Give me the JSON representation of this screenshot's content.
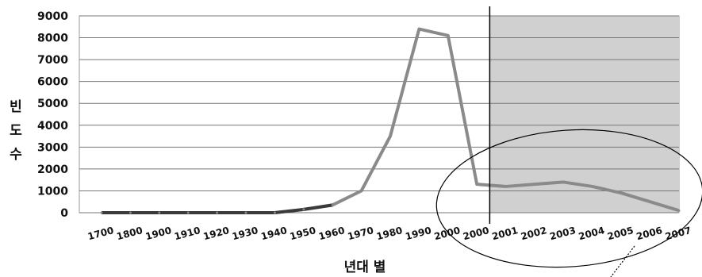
{
  "chart_data": {
    "type": "line",
    "title": "",
    "xlabel": "년대 별",
    "ylabel": "빈도수",
    "ylabel_chars": [
      "빈",
      "도",
      "수"
    ],
    "categories": [
      "1700",
      "1800",
      "1900",
      "1910",
      "1920",
      "1930",
      "1940",
      "1950",
      "1960",
      "1970",
      "1980",
      "1990",
      "2000",
      "2000",
      "2001",
      "2002",
      "2003",
      "2004",
      "2005",
      "2006",
      "2007"
    ],
    "series": [
      {
        "values": [
          0,
          0,
          0,
          0,
          0,
          0,
          0,
          150,
          350,
          1000,
          3500,
          8400,
          8100,
          1300,
          1200,
          1300,
          1400,
          1200,
          900,
          500,
          100
        ],
        "color": "#8a8a8a"
      }
    ],
    "ylim": [
      0,
      9000
    ],
    "yticks": [
      "0",
      "1000",
      "2000",
      "3000",
      "4000",
      "5000",
      "6000",
      "7000",
      "8000",
      "9000"
    ],
    "grid": true,
    "legend": "none",
    "shaded_region_from_category_index": 13.5,
    "shaded_color": "#d0d0d0",
    "annotation": "ellipse around 2001–2007 segment"
  }
}
